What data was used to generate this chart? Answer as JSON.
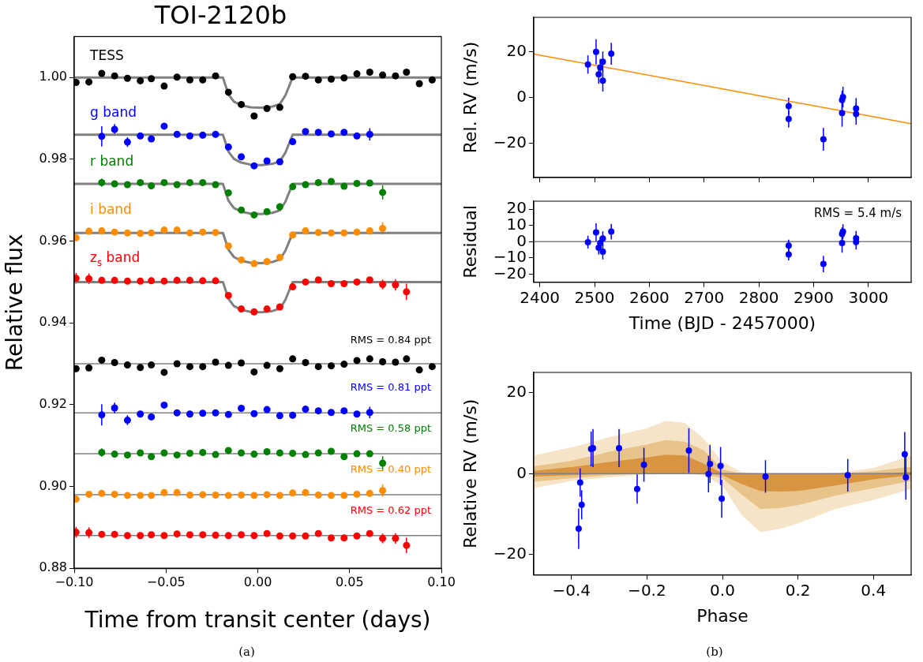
{
  "chart_data": [
    {
      "type": "scatter",
      "title": "TOI-2120b",
      "xlabel": "Time from transit center (days)",
      "ylabel": "Relative flux",
      "marker": "circle",
      "xlim": [
        -0.1,
        0.1
      ],
      "ylim": [
        0.88,
        1.01
      ],
      "xticks": [
        {
          "value": -0.1,
          "label": "−0.10"
        },
        {
          "value": -0.05,
          "label": "−0.05"
        },
        {
          "value": 0,
          "label": "0.00"
        },
        {
          "value": 0.05,
          "label": "0.05"
        },
        {
          "value": 0.1,
          "label": "0.10"
        }
      ],
      "yticks": [
        0.88,
        {
          "value": 0.9,
          "label": "0.90"
        },
        0.92,
        0.94,
        0.96,
        0.98,
        {
          "value": 1,
          "label": "1.00"
        }
      ],
      "ref_lines": [
        {
          "axis": "y",
          "value": 0.93,
          "color": "#808080"
        },
        {
          "axis": "y",
          "value": 0.918,
          "color": "#808080"
        },
        {
          "axis": "y",
          "value": 0.908,
          "color": "#808080"
        },
        {
          "axis": "y",
          "value": 0.898,
          "color": "#808080"
        },
        {
          "axis": "y",
          "value": 0.888,
          "color": "#808080"
        }
      ],
      "annotations": [
        "(a)"
      ],
      "series": [
        {
          "type": "line",
          "color": "#808080",
          "x": [
            -0.1,
            -0.019,
            -0.016,
            -0.013,
            -0.009,
            -0.004,
            0.002,
            0.008,
            0.012,
            0.015,
            0.017,
            0.019,
            0.1
          ],
          "marker": "none",
          "values": [
            1.0,
            1.0,
            0.9959,
            0.9941,
            0.9932,
            0.9927,
            0.9926,
            0.9929,
            0.9935,
            0.9956,
            0.9978,
            1.0,
            1.0
          ]
        },
        {
          "type": "line",
          "color": "#808080",
          "x": [
            -0.1,
            -0.019,
            -0.016,
            -0.013,
            -0.009,
            -0.004,
            0.002,
            0.008,
            0.012,
            0.015,
            0.017,
            0.019,
            0.1
          ],
          "marker": "none",
          "values": [
            0.986,
            0.986,
            0.9819,
            0.9801,
            0.9792,
            0.9787,
            0.9786,
            0.9789,
            0.9795,
            0.9816,
            0.9838,
            0.986,
            0.986
          ]
        },
        {
          "type": "line",
          "color": "#808080",
          "x": [
            -0.1,
            -0.019,
            -0.016,
            -0.013,
            -0.009,
            -0.004,
            0.002,
            0.008,
            0.012,
            0.015,
            0.017,
            0.019,
            0.1
          ],
          "marker": "none",
          "values": [
            0.974,
            0.974,
            0.9699,
            0.9681,
            0.9672,
            0.9667,
            0.9666,
            0.9669,
            0.9675,
            0.9696,
            0.9718,
            0.974,
            0.974
          ]
        },
        {
          "type": "line",
          "color": "#808080",
          "x": [
            -0.1,
            -0.019,
            -0.016,
            -0.013,
            -0.009,
            -0.004,
            0.002,
            0.008,
            0.012,
            0.015,
            0.017,
            0.019,
            0.1
          ],
          "marker": "none",
          "values": [
            0.962,
            0.962,
            0.9579,
            0.9561,
            0.9552,
            0.9547,
            0.9546,
            0.9549,
            0.9555,
            0.9576,
            0.9598,
            0.962,
            0.962
          ]
        },
        {
          "type": "line",
          "color": "#808080",
          "x": [
            -0.1,
            -0.019,
            -0.016,
            -0.013,
            -0.009,
            -0.004,
            0.002,
            0.008,
            0.012,
            0.015,
            0.017,
            0.019,
            0.1
          ],
          "marker": "none",
          "values": [
            0.95,
            0.95,
            0.9459,
            0.9441,
            0.9432,
            0.9427,
            0.9426,
            0.9429,
            0.9435,
            0.9456,
            0.9478,
            0.95,
            0.95
          ]
        },
        {
          "type": "scatter",
          "name": "TESS",
          "color": "#000000",
          "x": [
            -0.099,
            -0.092,
            -0.085,
            -0.078,
            -0.071,
            -0.064,
            -0.058,
            -0.051,
            -0.044,
            -0.037,
            -0.03,
            -0.023,
            -0.016,
            -0.009,
            -0.002,
            0.005,
            0.012,
            0.019,
            0.026,
            0.033,
            0.04,
            0.047,
            0.054,
            0.061,
            0.068,
            0.075,
            0.081,
            0.088,
            0.095
          ],
          "values": [
            0.9988,
            0.9989,
            1.001,
            1.0004,
            0.9998,
            0.9992,
            0.9997,
            0.9979,
            1.0001,
            0.9994,
            0.9994,
            1.0004,
            0.9964,
            0.9934,
            0.9906,
            0.9924,
            0.9927,
            1.0002,
            1.0003,
            0.9994,
            0.9996,
            0.9999,
            1.0009,
            1.0013,
            1.0006,
            1.0004,
            1.0013,
            0.9985,
            0.9994
          ]
        },
        {
          "type": "scatter",
          "name": "g band",
          "color": "#0000ff",
          "x": [
            -0.085,
            -0.078,
            -0.071,
            -0.064,
            -0.058,
            -0.051,
            -0.044,
            -0.037,
            -0.03,
            -0.023,
            -0.016,
            -0.009,
            -0.002,
            0.005,
            0.012,
            0.019,
            0.026,
            0.033,
            0.04,
            0.047,
            0.054,
            0.061
          ],
          "values": [
            0.9856,
            0.9873,
            0.9842,
            0.9857,
            0.985,
            0.9881,
            0.9861,
            0.9857,
            0.9859,
            0.9861,
            0.983,
            0.9806,
            0.9784,
            0.9796,
            0.9794,
            0.9843,
            0.9868,
            0.9866,
            0.9862,
            0.9866,
            0.9857,
            0.9861
          ],
          "errors": [
            0.0025,
            0.0013,
            0.0012,
            null,
            null,
            null,
            null,
            null,
            null,
            null,
            null,
            null,
            null,
            null,
            null,
            null,
            null,
            null,
            null,
            null,
            null,
            0.0015
          ]
        },
        {
          "type": "scatter",
          "name": "r band",
          "color": "#008000",
          "x": [
            -0.085,
            -0.078,
            -0.071,
            -0.064,
            -0.058,
            -0.051,
            -0.044,
            -0.037,
            -0.03,
            -0.023,
            -0.016,
            -0.009,
            -0.002,
            0.005,
            0.012,
            0.019,
            0.026,
            0.033,
            0.04,
            0.047,
            0.054,
            0.061,
            0.068
          ],
          "values": [
            0.9743,
            0.974,
            0.9738,
            0.9743,
            0.9735,
            0.9743,
            0.9738,
            0.9743,
            0.9743,
            0.9738,
            0.9718,
            0.9676,
            0.9664,
            0.9672,
            0.9684,
            0.9733,
            0.9738,
            0.9743,
            0.9746,
            0.9734,
            0.9741,
            0.9742,
            0.9719
          ],
          "errors": [
            0.001,
            null,
            null,
            null,
            null,
            null,
            null,
            null,
            null,
            null,
            null,
            null,
            null,
            null,
            null,
            null,
            null,
            null,
            null,
            null,
            null,
            null,
            0.0017
          ]
        },
        {
          "type": "scatter",
          "name": "i band",
          "color": "#ff8c00",
          "x": [
            -0.099,
            -0.092,
            -0.085,
            -0.078,
            -0.071,
            -0.064,
            -0.058,
            -0.051,
            -0.044,
            -0.037,
            -0.03,
            -0.023,
            -0.016,
            -0.009,
            -0.002,
            0.005,
            0.012,
            0.019,
            0.026,
            0.033,
            0.04,
            0.047,
            0.054,
            0.061,
            0.068
          ],
          "values": [
            0.9608,
            0.9624,
            0.9625,
            0.9622,
            0.962,
            0.9619,
            0.962,
            0.9627,
            0.9627,
            0.962,
            0.9622,
            0.9621,
            0.9588,
            0.9554,
            0.9545,
            0.955,
            0.956,
            0.9615,
            0.9625,
            0.9621,
            0.962,
            0.962,
            0.9622,
            0.9625,
            0.9631
          ],
          "errors": [
            null,
            null,
            null,
            null,
            null,
            null,
            null,
            null,
            null,
            null,
            null,
            null,
            null,
            null,
            null,
            null,
            null,
            null,
            null,
            null,
            null,
            null,
            null,
            null,
            0.0015
          ]
        },
        {
          "type": "scatter",
          "name": "z$_{s}$ band",
          "color": "#ff0000",
          "x": [
            -0.099,
            -0.092,
            -0.085,
            -0.078,
            -0.071,
            -0.064,
            -0.058,
            -0.051,
            -0.044,
            -0.037,
            -0.03,
            -0.023,
            -0.016,
            -0.009,
            -0.002,
            0.005,
            0.012,
            0.019,
            0.026,
            0.033,
            0.04,
            0.047,
            0.054,
            0.061,
            0.068,
            0.075,
            0.081
          ],
          "values": [
            0.9509,
            0.9508,
            0.9504,
            0.9504,
            0.9502,
            0.9502,
            0.9503,
            0.9502,
            0.9504,
            0.9504,
            0.9503,
            0.9503,
            0.9467,
            0.9434,
            0.9427,
            0.9434,
            0.9439,
            0.9488,
            0.95,
            0.9505,
            0.9496,
            0.9496,
            0.95,
            0.9505,
            0.9494,
            0.9493,
            0.9476
          ],
          "errors": [
            0.0013,
            0.0013,
            null,
            null,
            null,
            null,
            null,
            null,
            null,
            null,
            null,
            null,
            null,
            null,
            null,
            null,
            null,
            null,
            null,
            null,
            null,
            null,
            null,
            null,
            0.0012,
            0.0014,
            0.002
          ]
        },
        {
          "type": "scatter",
          "name": "RMS = 0.84 ppt",
          "color": "#000000",
          "x": [
            -0.099,
            -0.092,
            -0.085,
            -0.078,
            -0.071,
            -0.064,
            -0.058,
            -0.051,
            -0.044,
            -0.037,
            -0.03,
            -0.023,
            -0.016,
            -0.009,
            -0.002,
            0.005,
            0.012,
            0.019,
            0.026,
            0.033,
            0.04,
            0.047,
            0.054,
            0.061,
            0.068,
            0.075,
            0.081,
            0.088,
            0.095
          ],
          "values": [
            0.9288,
            0.929,
            0.9309,
            0.9303,
            0.9297,
            0.9291,
            0.9297,
            0.9279,
            0.93,
            0.9293,
            0.9293,
            0.9304,
            0.9296,
            0.9302,
            0.928,
            0.9296,
            0.9288,
            0.9312,
            0.9303,
            0.9293,
            0.9295,
            0.9299,
            0.9308,
            0.9312,
            0.9305,
            0.9304,
            0.9312,
            0.9285,
            0.9293
          ]
        },
        {
          "type": "scatter",
          "name": "RMS = 0.81 ppt",
          "color": "#0000ff",
          "x": [
            -0.085,
            -0.078,
            -0.071,
            -0.064,
            -0.058,
            -0.051,
            -0.044,
            -0.037,
            -0.03,
            -0.023,
            -0.016,
            -0.009,
            -0.002,
            0.005,
            0.012,
            0.019,
            0.026,
            0.033,
            0.04,
            0.047,
            0.054,
            0.061
          ],
          "values": [
            0.9175,
            0.9192,
            0.9162,
            0.9177,
            0.917,
            0.9199,
            0.918,
            0.9177,
            0.9179,
            0.918,
            0.9176,
            0.9191,
            0.9178,
            0.9188,
            0.9173,
            0.9174,
            0.9189,
            0.9185,
            0.9181,
            0.9185,
            0.9177,
            0.9181
          ],
          "errors": [
            0.0026,
            0.0013,
            0.0012,
            null,
            null,
            null,
            null,
            null,
            null,
            null,
            null,
            null,
            null,
            null,
            null,
            null,
            null,
            null,
            null,
            null,
            null,
            0.0014
          ]
        },
        {
          "type": "scatter",
          "name": "RMS = 0.58 ppt",
          "color": "#008000",
          "x": [
            -0.085,
            -0.078,
            -0.071,
            -0.064,
            -0.058,
            -0.051,
            -0.044,
            -0.037,
            -0.03,
            -0.023,
            -0.016,
            -0.009,
            -0.002,
            0.005,
            0.012,
            0.019,
            0.026,
            0.033,
            0.04,
            0.047,
            0.054,
            0.061,
            0.068
          ],
          "values": [
            0.9083,
            0.9079,
            0.9077,
            0.9082,
            0.9073,
            0.9082,
            0.9077,
            0.9081,
            0.9083,
            0.9078,
            0.9088,
            0.9082,
            0.9079,
            0.9085,
            0.9082,
            0.9081,
            0.9078,
            0.9082,
            0.9086,
            0.9073,
            0.908,
            0.908,
            0.9057
          ],
          "errors": [
            0.001,
            null,
            null,
            null,
            null,
            null,
            null,
            null,
            null,
            null,
            null,
            null,
            null,
            null,
            null,
            null,
            null,
            null,
            null,
            null,
            null,
            null,
            0.0017
          ]
        },
        {
          "type": "scatter",
          "name": "RMS = 0.40 ppt",
          "color": "#ff8c00",
          "x": [
            -0.099,
            -0.092,
            -0.085,
            -0.078,
            -0.071,
            -0.064,
            -0.058,
            -0.051,
            -0.044,
            -0.037,
            -0.03,
            -0.023,
            -0.016,
            -0.009,
            -0.002,
            0.005,
            0.012,
            0.019,
            0.026,
            0.033,
            0.04,
            0.047,
            0.054,
            0.061,
            0.068
          ],
          "values": [
            0.8969,
            0.8981,
            0.8983,
            0.8981,
            0.8978,
            0.8978,
            0.8978,
            0.8985,
            0.8985,
            0.8979,
            0.898,
            0.8979,
            0.8978,
            0.8979,
            0.8978,
            0.898,
            0.8978,
            0.8984,
            0.8985,
            0.8979,
            0.8978,
            0.8978,
            0.8981,
            0.8983,
            0.899
          ],
          "errors": [
            null,
            null,
            null,
            null,
            null,
            null,
            null,
            null,
            null,
            null,
            null,
            null,
            null,
            null,
            null,
            null,
            null,
            null,
            null,
            null,
            null,
            null,
            null,
            null,
            0.0015
          ]
        },
        {
          "type": "scatter",
          "name": "RMS = 0.62 ppt",
          "color": "#ff0000",
          "x": [
            -0.099,
            -0.092,
            -0.085,
            -0.078,
            -0.071,
            -0.064,
            -0.058,
            -0.051,
            -0.044,
            -0.037,
            -0.03,
            -0.023,
            -0.016,
            -0.009,
            -0.002,
            0.005,
            0.012,
            0.019,
            0.026,
            0.033,
            0.04,
            0.047,
            0.054,
            0.061,
            0.068,
            0.075,
            0.081
          ],
          "values": [
            0.8888,
            0.8887,
            0.8883,
            0.8883,
            0.888,
            0.888,
            0.8882,
            0.888,
            0.8884,
            0.8882,
            0.8882,
            0.8881,
            0.888,
            0.8882,
            0.888,
            0.8885,
            0.8879,
            0.8879,
            0.8879,
            0.8885,
            0.8874,
            0.8874,
            0.8879,
            0.8885,
            0.8873,
            0.8873,
            0.8856
          ],
          "errors": [
            0.0013,
            0.0013,
            null,
            null,
            null,
            null,
            null,
            null,
            null,
            null,
            null,
            null,
            null,
            null,
            null,
            null,
            null,
            null,
            null,
            null,
            null,
            null,
            null,
            null,
            0.0012,
            0.0013,
            0.0019
          ]
        }
      ]
    },
    {
      "type": "scatter",
      "ylabel": "Rel. RV (m/s)",
      "marker": "circle",
      "tick_labels": "y",
      "xlim": [
        2389,
        3078
      ],
      "ylim": [
        -35,
        35
      ],
      "xticks": [
        2400,
        2500,
        2600,
        2700,
        2800,
        2900,
        3000
      ],
      "yticks": [
        {
          "value": -20,
          "label": "−20"
        },
        0,
        20
      ],
      "series": [
        {
          "type": "line",
          "marker": "none",
          "color": "#ff8c00",
          "x": [
            2389,
            3078
          ],
          "values": [
            19.0,
            -11.5
          ]
        },
        {
          "type": "scatter",
          "color": "#0000ff",
          "x": [
            2487.9,
            2502.8,
            2507.6,
            2510.3,
            2515.1,
            2515.1,
            2530.5,
            2854.4,
            2854.4,
            2917.8,
            2951.9,
            2953.5,
            2951.9,
            2977.5,
            2977.5
          ],
          "values": [
            14.4,
            19.9,
            10.1,
            13.1,
            15.6,
            7.3,
            19.1,
            -3.8,
            -9.4,
            -18.3,
            -1.1,
            0.2,
            -6.8,
            -4.8,
            -7.2
          ],
          "errors": [
            4,
            5.5,
            4.1,
            3.7,
            4.5,
            4.7,
            4.8,
            3.7,
            3.7,
            5,
            4,
            4.5,
            6,
            4.5,
            4.7
          ]
        }
      ]
    },
    {
      "type": "scatter",
      "xlabel": "Time (BJD - 2457000)",
      "ylabel": "Residual",
      "marker": "circle",
      "xlim": [
        2389,
        3078
      ],
      "ylim": [
        -25,
        25
      ],
      "xticks": [
        2400,
        2500,
        2600,
        2700,
        2800,
        2900,
        3000
      ],
      "yticks": [
        {
          "value": -20,
          "label": "−20"
        },
        {
          "value": -10,
          "label": "−10"
        },
        0,
        10,
        20
      ],
      "ref_lines": [
        {
          "axis": "y",
          "value": 0,
          "color": "#808080"
        }
      ],
      "annotations": [
        "RMS = 5.4 m/s"
      ],
      "series": [
        {
          "type": "scatter",
          "color": "#0000ff",
          "x": [
            2487.9,
            2502.8,
            2507.6,
            2510.3,
            2515.1,
            2515.1,
            2530.5,
            2854.4,
            2854.4,
            2917.8,
            2951.9,
            2953.5,
            2951.9,
            2977.5,
            2977.5
          ],
          "values": [
            -0.3,
            5.8,
            -3.8,
            -0.8,
            2.0,
            -6.2,
            6.2,
            -2.4,
            -7.9,
            -13.8,
            4.8,
            6.2,
            -0.8,
            2.1,
            -0.2
          ],
          "errors": [
            4,
            5.5,
            4.1,
            3.7,
            4.5,
            4.7,
            4.8,
            3.7,
            3.7,
            5,
            4,
            4.5,
            6,
            4.5,
            4.7
          ]
        }
      ]
    },
    {
      "type": "scatter",
      "xlabel": "Phase",
      "ylabel": "Relative RV (m/s)",
      "marker": "circle",
      "xlim": [
        -0.5,
        0.5
      ],
      "ylim": [
        -25,
        25
      ],
      "xticks": [
        {
          "value": -0.4,
          "label": "−0.4"
        },
        {
          "value": -0.2,
          "label": "−0.2"
        },
        {
          "value": 0,
          "label": "0.0"
        },
        0.2,
        0.4
      ],
      "yticks": [
        {
          "value": -20,
          "label": "−20"
        },
        0,
        20
      ],
      "ref_lines": [
        {
          "axis": "y",
          "value": 0,
          "color": "#808080"
        }
      ],
      "annotations": [
        "(b)"
      ],
      "series": [
        {
          "type": "line",
          "color": "#f5e4c8",
          "x": [
            -0.5,
            -0.4,
            -0.3,
            -0.2,
            -0.15,
            -0.1,
            -0.05,
            0,
            0.05,
            0.1,
            0.15,
            0.2,
            0.3,
            0.4,
            0.5
          ],
          "values": [
            null,
            null,
            null,
            null,
            null,
            null,
            null,
            null,
            null,
            null,
            null,
            null,
            null,
            null,
            null
          ],
          "lower": [
            -3.6,
            -1.8,
            -0.9,
            -0.2,
            -0.1,
            0,
            -0.5,
            -2.9,
            -10.1,
            -14.4,
            -13.7,
            -12.3,
            -8.7,
            -6.5,
            -3.8
          ],
          "upper": [
            4.5,
            6.5,
            9.0,
            11.2,
            13.0,
            12.6,
            8.7,
            2.9,
            0.4,
            0,
            0,
            0,
            0.1,
            1.4,
            4.5
          ]
        },
        {
          "type": "line",
          "color": "#e8c48a",
          "x": [
            -0.5,
            -0.4,
            -0.3,
            -0.2,
            -0.15,
            -0.1,
            -0.05,
            0,
            0.05,
            0.1,
            0.15,
            0.2,
            0.3,
            0.4,
            0.5
          ],
          "values": [
            null,
            null,
            null,
            null,
            null,
            null,
            null,
            null,
            null,
            null,
            null,
            null,
            null,
            null,
            null
          ],
          "lower": [
            -2.0,
            -1.1,
            -0.4,
            0,
            0,
            0,
            -0.2,
            -1.1,
            -5.1,
            -8.7,
            -8.5,
            -7.8,
            -5.4,
            -3.6,
            -1.8
          ],
          "upper": [
            1.8,
            3.2,
            5.4,
            7.2,
            8.3,
            7.9,
            5.8,
            1.1,
            0,
            0,
            0,
            0,
            0,
            0.6,
            1.7
          ]
        },
        {
          "type": "line",
          "color": "#d89440",
          "x": [
            -0.5,
            -0.4,
            -0.3,
            -0.2,
            -0.15,
            -0.1,
            -0.05,
            0,
            0.05,
            0.1,
            0.15,
            0.2,
            0.3,
            0.4,
            0.5
          ],
          "values": [
            null,
            null,
            null,
            null,
            null,
            null,
            null,
            null,
            null,
            null,
            null,
            null,
            null,
            null,
            null
          ],
          "lower": [
            -0.7,
            -0.4,
            -0.1,
            0,
            0,
            0,
            0,
            -0.4,
            -2.5,
            -4.3,
            -4.4,
            -4.3,
            -2.9,
            -1.4,
            -0.4
          ],
          "upper": [
            0.7,
            1.6,
            2.9,
            4.0,
            4.7,
            4.5,
            2.5,
            0.1,
            0,
            0,
            0,
            0,
            0,
            0,
            0.4
          ]
        },
        {
          "type": "scatter",
          "color": "#0000ff",
          "x": [
            -0.381,
            -0.377,
            -0.373,
            -0.348,
            -0.343,
            -0.274,
            -0.226,
            -0.208,
            -0.089,
            -0.037,
            -0.033,
            -0.005,
            -0.002,
            0.114,
            0.332,
            0.483,
            0.486
          ],
          "values": [
            -13.6,
            -2.2,
            -7.7,
            6.1,
            6.3,
            6.3,
            -3.8,
            2.2,
            5.7,
            -0.1,
            2.4,
            1.9,
            -6.2,
            -0.7,
            -0.4,
            4.8,
            -0.9
          ],
          "errors": [
            5,
            3.5,
            3.6,
            4.3,
            4.7,
            4.7,
            3.6,
            4.2,
            5.5,
            4.5,
            4.7,
            4.7,
            4.7,
            4,
            4,
            5.5,
            5.5
          ]
        }
      ]
    }
  ]
}
